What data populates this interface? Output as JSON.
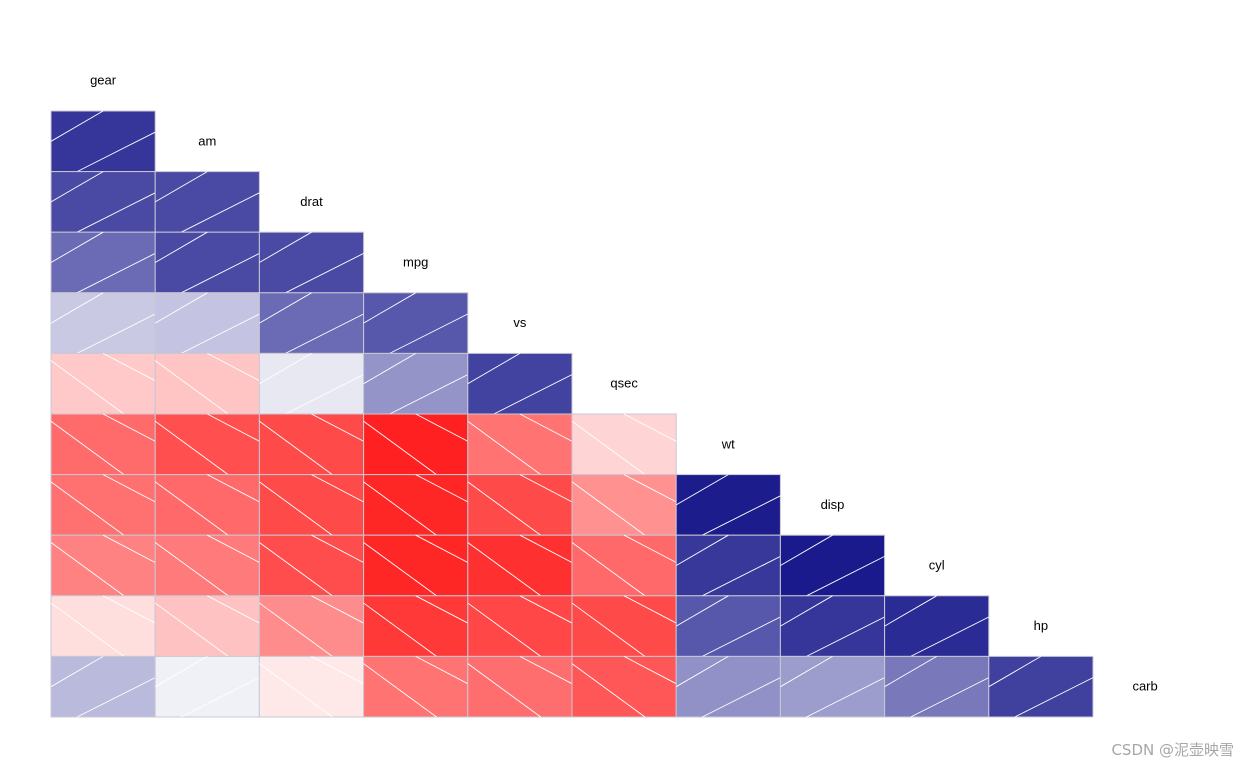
{
  "chart_data": {
    "type": "heatmap",
    "title": "",
    "variables": [
      "gear",
      "am",
      "drat",
      "mpg",
      "vs",
      "qsec",
      "wt",
      "disp",
      "cyl",
      "hp",
      "carb"
    ],
    "cells": [
      [
        0.79
      ],
      [
        0.71,
        0.71
      ],
      [
        0.58,
        0.71,
        0.71
      ],
      [
        0.21,
        0.23,
        0.58,
        0.66
      ],
      [
        -0.21,
        -0.23,
        0.09,
        0.42,
        0.74
      ],
      [
        -0.58,
        -0.69,
        -0.71,
        -0.87,
        -0.55,
        -0.17
      ],
      [
        -0.56,
        -0.59,
        -0.71,
        -0.85,
        -0.71,
        -0.43,
        0.89
      ],
      [
        -0.49,
        -0.52,
        -0.7,
        -0.85,
        -0.81,
        -0.59,
        0.78,
        0.9
      ],
      [
        -0.13,
        -0.24,
        -0.45,
        -0.78,
        -0.72,
        -0.71,
        0.66,
        0.79,
        0.83
      ],
      [
        0.27,
        0.06,
        -0.09,
        -0.55,
        -0.57,
        -0.66,
        0.43,
        0.39,
        0.53,
        0.75
      ]
    ],
    "legend": "none",
    "grid": false
  },
  "colors": {
    "positive": "#00007f",
    "negative": "#ff0000",
    "neutral": "#ffffff",
    "cell_border": "#c8c8d4",
    "stripe": "#ffffff"
  },
  "watermark": "CSDN @泥壶映雪"
}
